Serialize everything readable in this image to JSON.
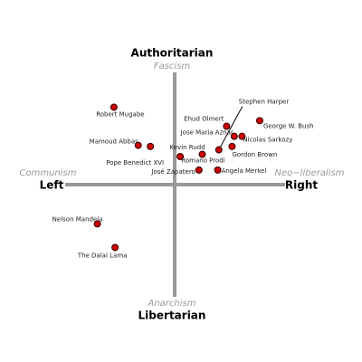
{
  "chart_data": {
    "type": "scatter",
    "x_label_left": "Left",
    "x_label_right": "Right",
    "y_label_top": "Authoritarian",
    "y_label_bottom": "Libertarian",
    "x_sublabel_left": "Communism",
    "x_sublabel_right": "Neo−liberalism",
    "y_sublabel_top": "Fascism",
    "y_sublabel_bottom": "Anarchism",
    "labels": [
      "Robert Mugabe",
      "Mamoud Abbas",
      "Pope Benedict XVI",
      "Kevin Rudd",
      "Romano Prodi",
      "José Zapatero",
      "Angela Merkel",
      "Stephen Harper",
      "Ehud Olmert",
      "Jose Maria Aznar",
      "Nicolas Sarkozy",
      "George W. Bush",
      "Gordon Brown",
      "Nelson Mandela",
      "The Dalai Lama"
    ],
    "x": [
      -5.5,
      -3.3,
      -2.2,
      0.5,
      2.5,
      2.2,
      3.9,
      4.0,
      4.7,
      5.4,
      6.1,
      7.7,
      5.2,
      -7.0,
      -5.4
    ],
    "y": [
      6.9,
      3.5,
      3.4,
      2.5,
      2.7,
      1.3,
      1.3,
      3.1,
      5.2,
      4.3,
      4.3,
      5.7,
      3.4,
      -3.5,
      -5.6
    ],
    "color": "#cc0000",
    "xlim": [
      -10,
      10
    ],
    "ylim": [
      -10,
      10
    ]
  }
}
